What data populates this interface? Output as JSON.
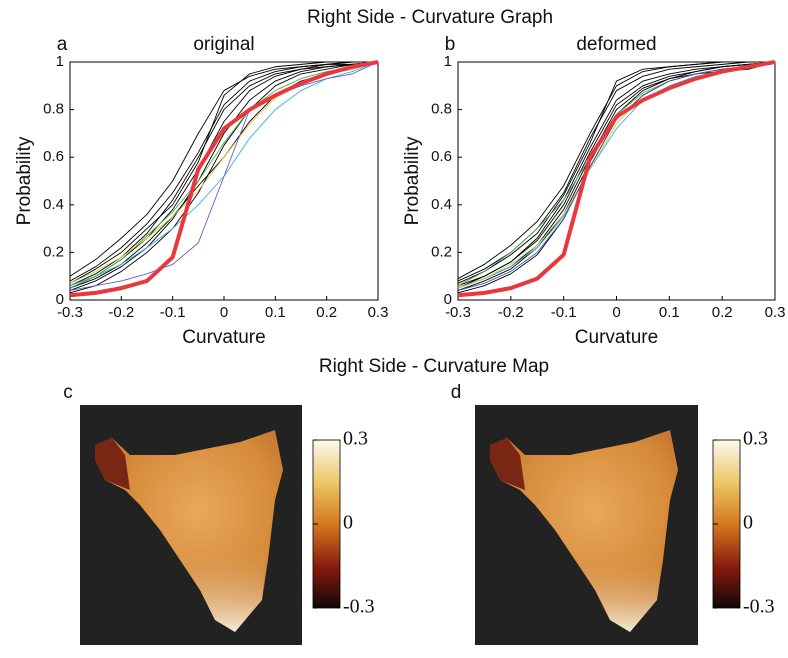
{
  "figure": {
    "graph_title": "Right Side - Curvature Graph",
    "map_title": "Right Side - Curvature Map"
  },
  "chart_data": [
    {
      "type": "line",
      "panel": "a",
      "title": "original",
      "xlabel": "Curvature",
      "ylabel": "Probability",
      "x": [
        -0.3,
        -0.25,
        -0.2,
        -0.15,
        -0.1,
        -0.05,
        0,
        0.05,
        0.1,
        0.15,
        0.2,
        0.25,
        0.3
      ],
      "xlim": [
        -0.3,
        0.3
      ],
      "xticks": [
        -0.3,
        -0.2,
        -0.1,
        0,
        0.1,
        0.2,
        0.3
      ],
      "ylim": [
        0,
        1
      ],
      "yticks": [
        0,
        0.2,
        0.4,
        0.6,
        0.8,
        1
      ],
      "series": [
        {
          "color": "#000000",
          "values": [
            0.05,
            0.1,
            0.17,
            0.26,
            0.38,
            0.55,
            0.75,
            0.88,
            0.94,
            0.97,
            0.98,
            0.99,
            1
          ]
        },
        {
          "color": "#000000",
          "values": [
            0.08,
            0.14,
            0.22,
            0.32,
            0.45,
            0.62,
            0.82,
            0.92,
            0.96,
            0.98,
            0.99,
            1,
            1
          ]
        },
        {
          "color": "#000000",
          "values": [
            0.04,
            0.08,
            0.14,
            0.22,
            0.34,
            0.5,
            0.7,
            0.84,
            0.92,
            0.96,
            0.98,
            0.99,
            1
          ]
        },
        {
          "color": "#000000",
          "values": [
            0.1,
            0.17,
            0.26,
            0.36,
            0.5,
            0.7,
            0.88,
            0.94,
            0.97,
            0.98,
            0.99,
            1,
            1
          ]
        },
        {
          "color": "#000000",
          "values": [
            0.06,
            0.11,
            0.18,
            0.28,
            0.42,
            0.6,
            0.8,
            0.9,
            0.95,
            0.97,
            0.99,
            0.99,
            1
          ]
        },
        {
          "color": "#000000",
          "values": [
            0.03,
            0.06,
            0.12,
            0.2,
            0.3,
            0.45,
            0.65,
            0.8,
            0.9,
            0.95,
            0.97,
            0.99,
            1
          ]
        },
        {
          "color": "#000000",
          "values": [
            0.07,
            0.13,
            0.2,
            0.3,
            0.4,
            0.58,
            0.86,
            0.95,
            0.98,
            0.99,
            1,
            1,
            1
          ]
        },
        {
          "color": "#000000",
          "values": [
            0.05,
            0.09,
            0.15,
            0.24,
            0.35,
            0.48,
            0.6,
            0.75,
            0.86,
            0.92,
            0.95,
            0.97,
            1
          ]
        },
        {
          "color": "#2fb5d6",
          "values": [
            0.06,
            0.1,
            0.15,
            0.22,
            0.3,
            0.4,
            0.52,
            0.68,
            0.8,
            0.88,
            0.93,
            0.96,
            1
          ]
        },
        {
          "color": "#4caf50",
          "values": [
            0.05,
            0.1,
            0.17,
            0.27,
            0.37,
            0.5,
            0.66,
            0.8,
            0.88,
            0.93,
            0.96,
            0.98,
            1
          ]
        },
        {
          "color": "#d8c83a",
          "values": [
            0.07,
            0.12,
            0.18,
            0.26,
            0.35,
            0.46,
            0.6,
            0.74,
            0.85,
            0.91,
            0.95,
            0.97,
            1
          ]
        },
        {
          "color": "#6a5acd",
          "values": [
            0.04,
            0.06,
            0.08,
            0.11,
            0.15,
            0.24,
            0.52,
            0.8,
            0.86,
            0.9,
            0.93,
            0.95,
            1
          ]
        },
        {
          "color": "#e8383d",
          "width": 4,
          "values": [
            0.02,
            0.03,
            0.05,
            0.08,
            0.18,
            0.55,
            0.72,
            0.8,
            0.86,
            0.91,
            0.95,
            0.98,
            1
          ]
        }
      ]
    },
    {
      "type": "line",
      "panel": "b",
      "title": "deformed",
      "xlabel": "Curvature",
      "ylabel": "Probability",
      "x": [
        -0.3,
        -0.25,
        -0.2,
        -0.15,
        -0.1,
        -0.05,
        0,
        0.05,
        0.1,
        0.15,
        0.2,
        0.25,
        0.3
      ],
      "xlim": [
        -0.3,
        0.3
      ],
      "xticks": [
        -0.3,
        -0.2,
        -0.1,
        0,
        0.1,
        0.2,
        0.3
      ],
      "ylim": [
        0,
        1
      ],
      "yticks": [
        0,
        0.2,
        0.4,
        0.6,
        0.8,
        1
      ],
      "series": [
        {
          "color": "#000000",
          "values": [
            0.06,
            0.1,
            0.16,
            0.25,
            0.4,
            0.62,
            0.82,
            0.9,
            0.94,
            0.96,
            0.98,
            0.99,
            1
          ]
        },
        {
          "color": "#000000",
          "values": [
            0.08,
            0.13,
            0.2,
            0.3,
            0.45,
            0.68,
            0.88,
            0.94,
            0.97,
            0.98,
            0.99,
            1,
            1
          ]
        },
        {
          "color": "#000000",
          "values": [
            0.04,
            0.08,
            0.13,
            0.22,
            0.36,
            0.58,
            0.78,
            0.88,
            0.93,
            0.96,
            0.98,
            0.99,
            1
          ]
        },
        {
          "color": "#000000",
          "values": [
            0.09,
            0.15,
            0.23,
            0.33,
            0.48,
            0.7,
            0.9,
            0.96,
            0.98,
            0.99,
            1,
            1,
            1
          ]
        },
        {
          "color": "#000000",
          "values": [
            0.05,
            0.1,
            0.16,
            0.26,
            0.42,
            0.64,
            0.84,
            0.92,
            0.95,
            0.97,
            0.98,
            0.99,
            1
          ]
        },
        {
          "color": "#000000",
          "values": [
            0.03,
            0.06,
            0.11,
            0.19,
            0.34,
            0.56,
            0.76,
            0.86,
            0.92,
            0.95,
            0.97,
            0.98,
            1
          ]
        },
        {
          "color": "#000000",
          "values": [
            0.07,
            0.12,
            0.19,
            0.28,
            0.44,
            0.66,
            0.92,
            0.97,
            0.98,
            0.99,
            1,
            1,
            1
          ]
        },
        {
          "color": "#000000",
          "values": [
            0.05,
            0.09,
            0.14,
            0.23,
            0.38,
            0.6,
            0.8,
            0.89,
            0.93,
            0.95,
            0.96,
            0.97,
            1
          ]
        },
        {
          "color": "#2fb5d6",
          "values": [
            0.05,
            0.09,
            0.14,
            0.22,
            0.35,
            0.55,
            0.72,
            0.84,
            0.9,
            0.94,
            0.96,
            0.98,
            1
          ]
        },
        {
          "color": "#4caf50",
          "values": [
            0.06,
            0.12,
            0.2,
            0.3,
            0.42,
            0.6,
            0.78,
            0.87,
            0.92,
            0.95,
            0.97,
            0.98,
            1
          ]
        },
        {
          "color": "#d8c83a",
          "values": [
            0.05,
            0.09,
            0.15,
            0.23,
            0.36,
            0.55,
            0.74,
            0.86,
            0.92,
            0.95,
            0.97,
            0.98,
            1
          ]
        },
        {
          "color": "#3f51b5",
          "values": [
            0.04,
            0.07,
            0.12,
            0.2,
            0.34,
            0.56,
            0.76,
            0.86,
            0.92,
            0.95,
            0.97,
            0.98,
            1
          ]
        },
        {
          "color": "#e8383d",
          "width": 4,
          "values": [
            0.02,
            0.03,
            0.05,
            0.09,
            0.19,
            0.6,
            0.77,
            0.84,
            0.89,
            0.93,
            0.96,
            0.98,
            1
          ]
        }
      ]
    }
  ],
  "maps": [
    {
      "panel": "c",
      "colorbar": {
        "lim": [
          -0.3,
          0.3
        ],
        "ticks": [
          -0.3,
          0,
          0.3
        ]
      }
    },
    {
      "panel": "d",
      "colorbar": {
        "lim": [
          -0.3,
          0.3
        ],
        "ticks": [
          -0.3,
          0,
          0.3
        ]
      }
    }
  ]
}
